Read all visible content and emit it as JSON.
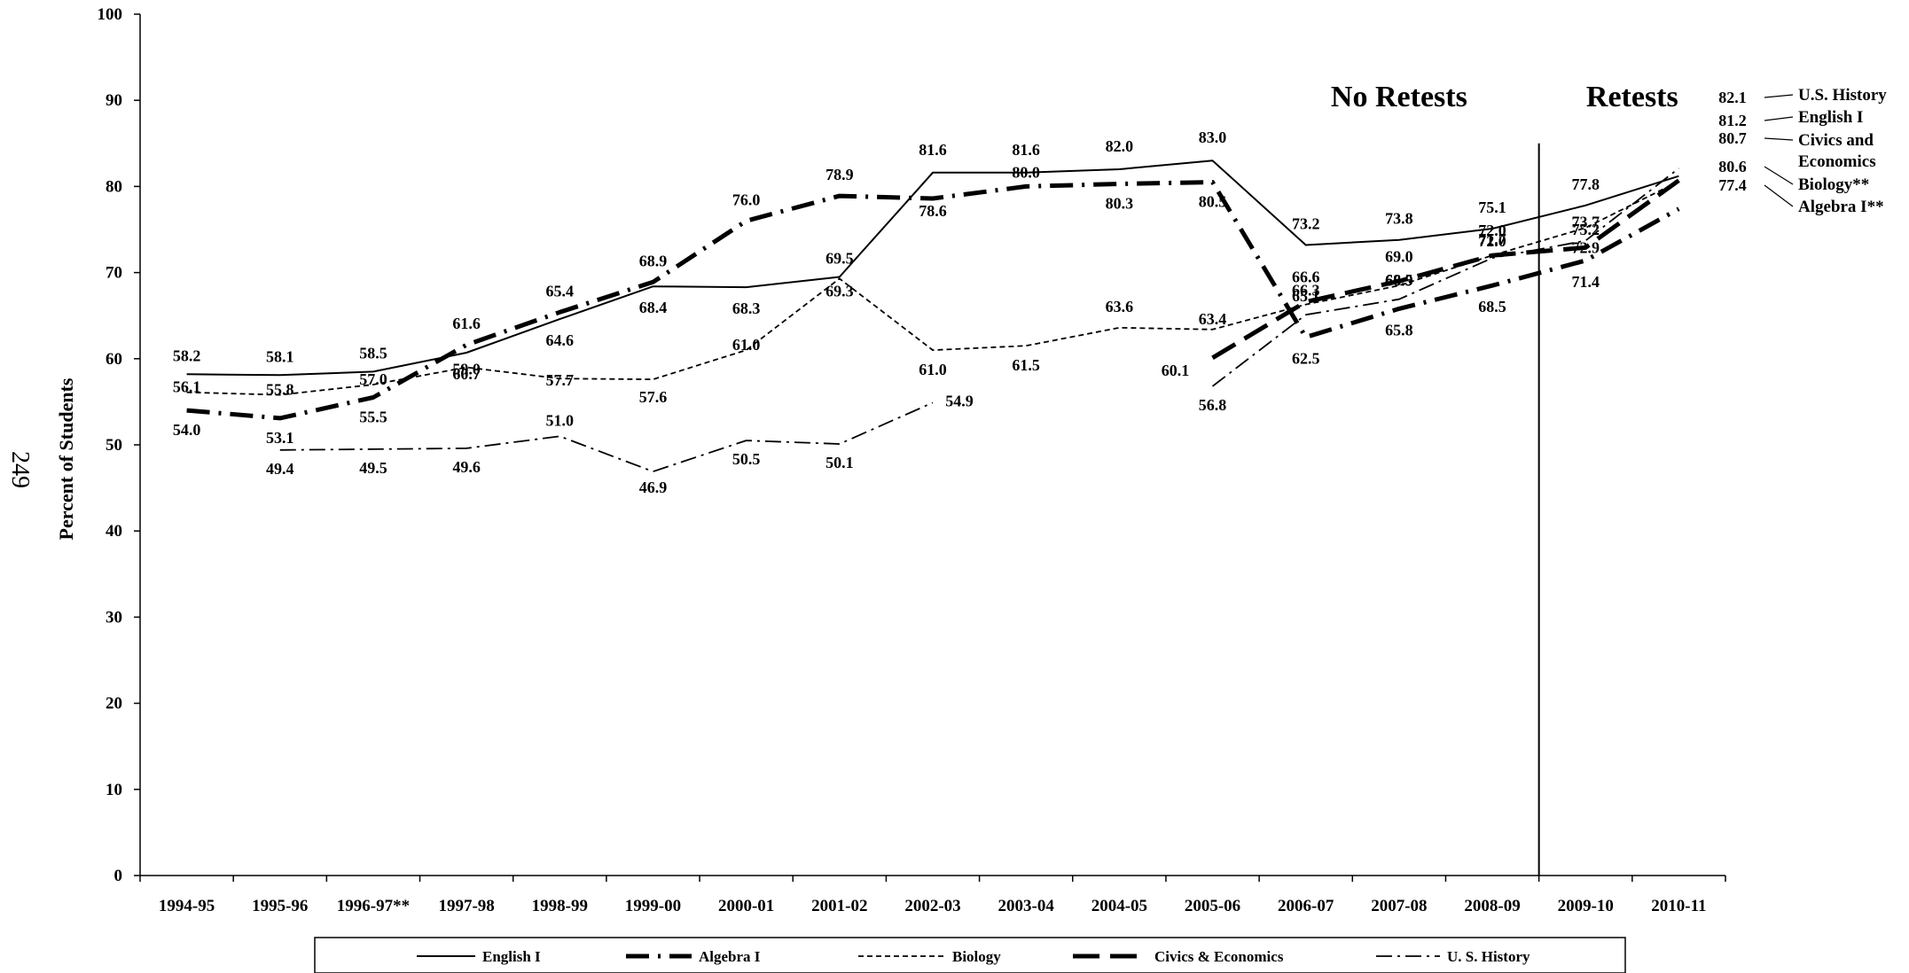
{
  "page_number": "249",
  "chart_data": {
    "type": "line",
    "ylabel": "Percent of Students",
    "xlabel": "",
    "ylim": [
      0,
      100
    ],
    "yticks": [
      0,
      10,
      20,
      30,
      40,
      50,
      60,
      70,
      80,
      90,
      100
    ],
    "categories": [
      "1994-95",
      "1995-96",
      "1996-97**",
      "1997-98",
      "1998-99",
      "1999-00",
      "2000-01",
      "2001-02",
      "2002-03",
      "2003-04",
      "2004-05",
      "2005-06",
      "2006-07",
      "2007-08",
      "2008-09",
      "2009-10",
      "2010-11"
    ],
    "grid": false,
    "legend_position": "bottom",
    "section_headings": [
      "No Retests",
      "Retests"
    ],
    "series": [
      {
        "name": "English I",
        "style": "solid",
        "values": [
          58.2,
          58.1,
          58.5,
          60.7,
          64.6,
          68.4,
          68.3,
          69.5,
          81.6,
          81.6,
          82.0,
          83.0,
          73.2,
          73.8,
          75.1,
          77.8,
          81.2
        ],
        "labels": [
          "58.2",
          "58.1",
          "58.5",
          "60.7",
          "64.6",
          "68.4",
          "68.3",
          "69.5",
          "81.6",
          "81.6",
          "82.0",
          "83.0",
          "73.2",
          "73.8",
          "75.1",
          "77.8",
          "81.2"
        ]
      },
      {
        "name": "Algebra I",
        "style": "dash-dot-long",
        "values": [
          54.0,
          53.1,
          55.5,
          61.6,
          65.4,
          68.9,
          76.0,
          78.9,
          78.6,
          80.0,
          80.3,
          80.5,
          62.5,
          65.8,
          68.5,
          71.4,
          77.4
        ],
        "labels": [
          "54.0",
          "53.1",
          "55.5",
          "61.6",
          "65.4",
          "68.9",
          "76.0",
          "78.9",
          "78.6",
          "80.0",
          "80.3",
          "80.5",
          "62.5",
          "65.8",
          "68.5",
          "71.4",
          "77.4"
        ]
      },
      {
        "name": "Biology",
        "style": "short-dash",
        "values": [
          56.1,
          55.8,
          57.0,
          59.0,
          57.7,
          57.6,
          61.0,
          69.3,
          61.0,
          61.5,
          63.6,
          63.4,
          66.3,
          68.5,
          72.0,
          75.2,
          80.6
        ],
        "labels": [
          "56.1",
          "55.8",
          "57.0",
          "59.0",
          "57.7",
          "57.6",
          "61.0",
          "69.3",
          "61.0",
          "61.5",
          "63.6",
          "63.4",
          "66.3",
          "68.5",
          "72.0",
          "75.2",
          "80.6"
        ]
      },
      {
        "name": "Civics & Economics",
        "style": "long-dash",
        "values": [
          null,
          null,
          null,
          null,
          null,
          null,
          null,
          null,
          null,
          null,
          null,
          60.1,
          66.6,
          69.0,
          72.0,
          72.9,
          80.7
        ],
        "labels": [
          null,
          null,
          null,
          null,
          null,
          null,
          null,
          null,
          null,
          null,
          null,
          "60.1",
          "66.6",
          "69.0",
          "72.0",
          "72.9",
          "80.7"
        ]
      },
      {
        "name": "U. S. History",
        "style": "dash-dot",
        "values": [
          null,
          49.4,
          49.5,
          49.6,
          51.0,
          46.9,
          50.5,
          50.1,
          54.9,
          null,
          null,
          56.8,
          65.1,
          66.9,
          71.7,
          73.7,
          82.1
        ],
        "labels": [
          null,
          "49.4",
          "49.5",
          "49.6",
          "51.0",
          "46.9",
          "50.5",
          "50.1",
          "54.9",
          null,
          null,
          "56.8",
          "65.1",
          "66.9",
          "71.7",
          "73.7",
          "82.1"
        ]
      }
    ],
    "end_labels": [
      "U.S. History",
      "English I",
      "Civics and",
      "Economics",
      "Biology**",
      "Algebra I**"
    ],
    "legend": [
      "English I",
      "Algebra I",
      "Biology",
      "Civics & Economics",
      "U. S. History"
    ]
  }
}
